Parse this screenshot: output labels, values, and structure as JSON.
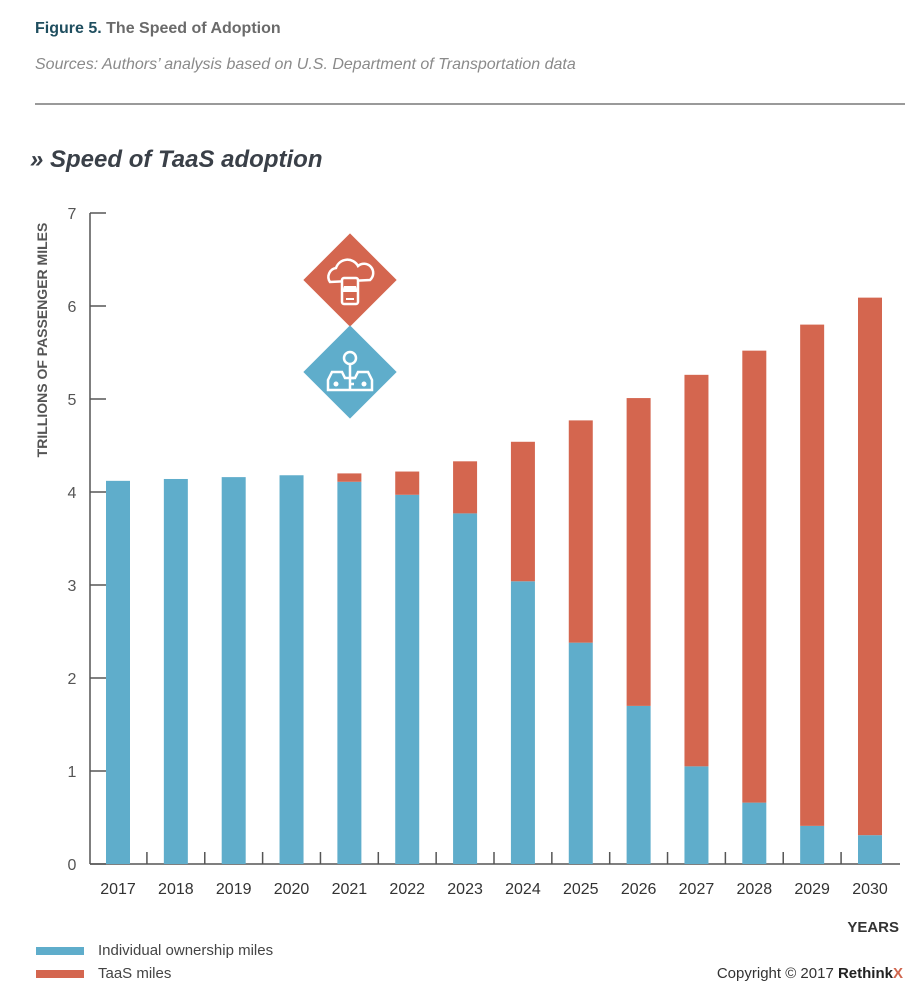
{
  "header": {
    "figure_number": "Figure 5.",
    "figure_title": "The Speed of Adoption",
    "sources": "Sources: Authors’ analysis based on U.S. Department of Transportation data"
  },
  "chart_title": "» Speed of TaaS adoption",
  "legend": {
    "individual_label": "Individual ownership miles",
    "taas_label": "TaaS miles"
  },
  "copyright": {
    "text": "Copyright © 2017 ",
    "brand": "Rethink",
    "brand_x": "X"
  },
  "icons": [
    "cloud-phone-car-icon",
    "car-key-icon"
  ],
  "colors": {
    "individual": "#5fadcb",
    "taas": "#d4664f",
    "axis": "#555555"
  },
  "chart_data": {
    "type": "bar",
    "stacked": true,
    "categories": [
      "2017",
      "2018",
      "2019",
      "2020",
      "2021",
      "2022",
      "2023",
      "2024",
      "2025",
      "2026",
      "2027",
      "2028",
      "2029",
      "2030"
    ],
    "series": [
      {
        "name": "Individual ownership miles",
        "values": [
          4.12,
          4.14,
          4.16,
          4.18,
          4.11,
          3.97,
          3.77,
          3.04,
          2.38,
          1.7,
          1.05,
          0.66,
          0.41,
          0.31
        ]
      },
      {
        "name": "TaaS miles",
        "values": [
          0,
          0,
          0,
          0,
          0.09,
          0.25,
          0.56,
          1.5,
          2.39,
          3.31,
          4.21,
          4.86,
          5.39,
          5.78
        ]
      }
    ],
    "xlabel": "YEARS",
    "ylabel": "TRILLIONS OF PASSENGER MILES",
    "ylim": [
      0,
      7
    ],
    "yticks": [
      0,
      1,
      2,
      3,
      4,
      5,
      6,
      7
    ],
    "grid": false
  }
}
